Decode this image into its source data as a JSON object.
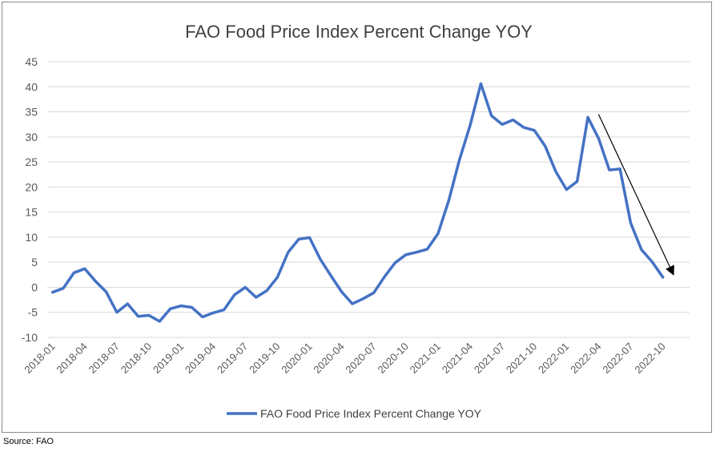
{
  "source_note": "Source: FAO",
  "chart_data": {
    "type": "line",
    "title": "FAO Food Price Index Percent Change YOY",
    "xlabel": "",
    "ylabel": "",
    "ylim": [
      -10,
      45
    ],
    "yticks": [
      -10,
      -5,
      0,
      5,
      10,
      15,
      20,
      25,
      30,
      35,
      40,
      45
    ],
    "grid": true,
    "legend_position": "bottom",
    "tick_labels": [
      "2018-01",
      "2018-04",
      "2018-07",
      "2018-10",
      "2019-01",
      "2019-04",
      "2019-07",
      "2019-10",
      "2020-01",
      "2020-04",
      "2020-07",
      "2020-10",
      "2021-01",
      "2021-04",
      "2021-07",
      "2021-10",
      "2022-01",
      "2022-04",
      "2022-07",
      "2022-10"
    ],
    "x": [
      "2018-01",
      "2018-02",
      "2018-03",
      "2018-04",
      "2018-05",
      "2018-06",
      "2018-07",
      "2018-08",
      "2018-09",
      "2018-10",
      "2018-11",
      "2018-12",
      "2019-01",
      "2019-02",
      "2019-03",
      "2019-04",
      "2019-05",
      "2019-06",
      "2019-07",
      "2019-08",
      "2019-09",
      "2019-10",
      "2019-11",
      "2019-12",
      "2020-01",
      "2020-02",
      "2020-03",
      "2020-04",
      "2020-05",
      "2020-06",
      "2020-07",
      "2020-08",
      "2020-09",
      "2020-10",
      "2020-11",
      "2020-12",
      "2021-01",
      "2021-02",
      "2021-03",
      "2021-04",
      "2021-05",
      "2021-06",
      "2021-07",
      "2021-08",
      "2021-09",
      "2021-10",
      "2021-11",
      "2021-12",
      "2022-01",
      "2022-02",
      "2022-03",
      "2022-04",
      "2022-05",
      "2022-06",
      "2022-07",
      "2022-08",
      "2022-09",
      "2022-10"
    ],
    "series": [
      {
        "name": "FAO Food Price Index Percent Change YOY",
        "color": "#4472c4",
        "values": [
          -1.0,
          -0.2,
          2.9,
          3.7,
          1.2,
          -0.9,
          -5.0,
          -3.3,
          -5.8,
          -5.6,
          -6.8,
          -4.3,
          -3.7,
          -4.0,
          -5.9,
          -5.1,
          -4.5,
          -1.5,
          0.0,
          -2.0,
          -0.7,
          2.0,
          7.0,
          9.6,
          9.9,
          5.6,
          2.3,
          -0.9,
          -3.3,
          -2.3,
          -1.1,
          2.1,
          4.9,
          6.5,
          7.0,
          7.6,
          10.7,
          17.3,
          25.4,
          32.3,
          40.6,
          34.2,
          32.5,
          33.4,
          31.9,
          31.3,
          28.2,
          23.1,
          19.5,
          21.1,
          33.9,
          29.7,
          23.4,
          23.6,
          12.8,
          7.5,
          5.1,
          2.0
        ]
      }
    ],
    "annotations": [
      {
        "type": "arrow",
        "from": [
          "2022-04",
          34.5
        ],
        "to": [
          "2022-11",
          2.5
        ],
        "color": "#000000"
      }
    ]
  }
}
